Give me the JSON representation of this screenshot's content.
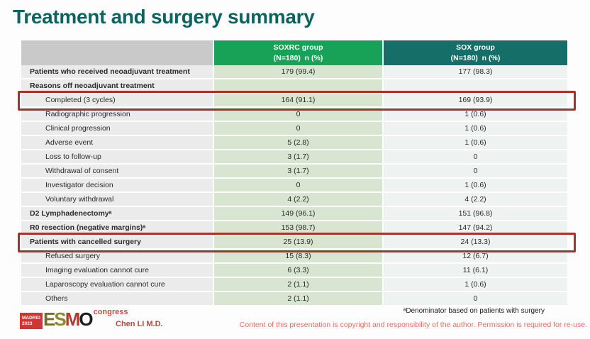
{
  "slide": {
    "title": "Treatment and surgery summary",
    "footnote": "ᵃDenominator based on patients with surgery",
    "copyright": "Content of this presentation is copyright and responsibility of the author. Permission is required for re-use.",
    "presenter": "Chen LI M.D.",
    "logo": {
      "venue": "MADRID",
      "year": "2023",
      "org_letters": [
        "E",
        "S",
        "M",
        "O"
      ],
      "suffix": "congress"
    }
  },
  "colors": {
    "title_teal": "#0c6461",
    "header_green": "#18a257",
    "header_teal": "#156e68",
    "label_column_bg": "#ebebeb",
    "soxrc_column_bg": "#d8e5d0",
    "sox_column_bg": "#eef3f1",
    "highlight_border_red": "#a93228",
    "copyright_pink": "#dd7069",
    "presenter_red": "#b04a3e",
    "logo_red": "#cf3832"
  },
  "table": {
    "columns": [
      {
        "line1": "",
        "line2": ""
      },
      {
        "line1": "SOXRC group",
        "line2": "(N=180)  n (%)"
      },
      {
        "line1": "SOX group",
        "line2": "(N=180)  n (%)"
      }
    ],
    "rows": [
      {
        "label": "Patients who received neoadjuvant treatment",
        "soxrc": "179 (99.4)",
        "sox": "177 (98.3)",
        "bold": true
      },
      {
        "label": "Reasons off neoadjuvant treatment",
        "soxrc": "",
        "sox": "",
        "bold": true
      },
      {
        "label": "Completed (3 cycles)",
        "soxrc": "164 (91.1)",
        "sox": "169 (93.9)",
        "highlight": true
      },
      {
        "label": "Radiographic progression",
        "soxrc": "0",
        "sox": "1 (0.6)"
      },
      {
        "label": "Clinical progression",
        "soxrc": "0",
        "sox": "1 (0.6)"
      },
      {
        "label": "Adverse event",
        "soxrc": "5 (2.8)",
        "sox": "1 (0.6)"
      },
      {
        "label": "Loss to follow-up",
        "soxrc": "3 (1.7)",
        "sox": "0"
      },
      {
        "label": "Withdrawal of consent",
        "soxrc": "3 (1.7)",
        "sox": "0"
      },
      {
        "label": "Investigator decision",
        "soxrc": "0",
        "sox": "1 (0.6)"
      },
      {
        "label": "Voluntary withdrawal",
        "soxrc": "4 (2.2)",
        "sox": "4 (2.2)"
      },
      {
        "label": "D2 Lymphadenectomyᵃ",
        "soxrc": "149 (96.1)",
        "sox": "151 (96.8)",
        "bold": true
      },
      {
        "label": "R0 resection (negative margins)ᵃ",
        "soxrc": "153 (98.7)",
        "sox": "147 (94.2)",
        "bold": true
      },
      {
        "label": "Patients with cancelled surgery",
        "soxrc": "25 (13.9)",
        "sox": "24 (13.3)",
        "bold": true,
        "highlight": true
      },
      {
        "label": "Refused surgery",
        "soxrc": "15 (8.3)",
        "sox": "12 (6.7)"
      },
      {
        "label": "Imaging evaluation cannot cure",
        "soxrc": "6 (3.3)",
        "sox": "11 (6.1)"
      },
      {
        "label": "Laparoscopy evaluation cannot cure",
        "soxrc": "2 (1.1)",
        "sox": "1 (0.6)"
      },
      {
        "label": "Others",
        "soxrc": "2 (1.1)",
        "sox": "0"
      }
    ]
  }
}
